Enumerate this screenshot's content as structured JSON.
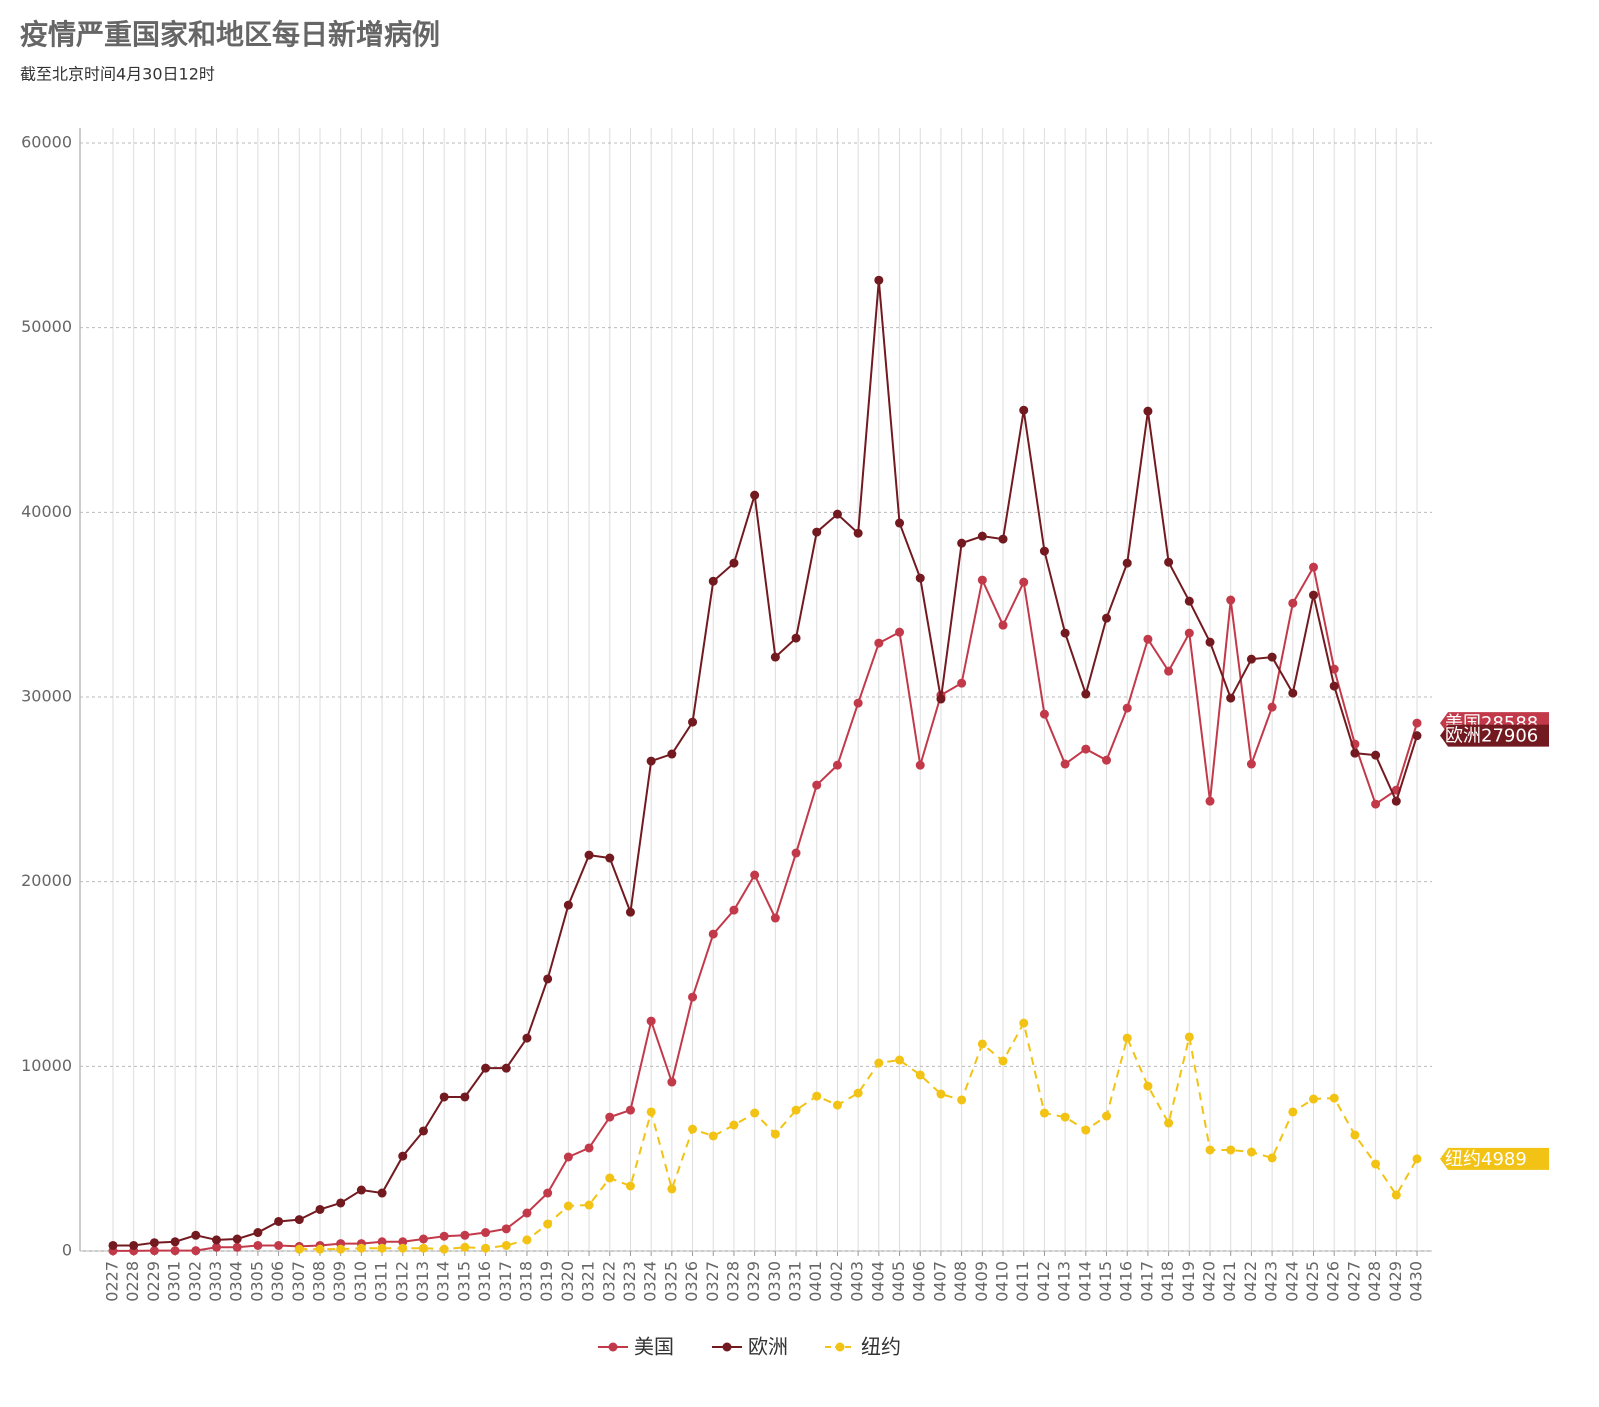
{
  "chart_data": {
    "type": "line",
    "title": "疫情严重国家和地区每日新增病例",
    "subtitle": "截至北京时间4月30日12时",
    "categories": [
      "0227",
      "0228",
      "0229",
      "0301",
      "0302",
      "0303",
      "0304",
      "0305",
      "0306",
      "0307",
      "0308",
      "0309",
      "0310",
      "0311",
      "0312",
      "0313",
      "0314",
      "0315",
      "0316",
      "0317",
      "0318",
      "0319",
      "0320",
      "0321",
      "0322",
      "0323",
      "0324",
      "0325",
      "0326",
      "0327",
      "0328",
      "0329",
      "0330",
      "0331",
      "0401",
      "0402",
      "0403",
      "0404",
      "0405",
      "0406",
      "0407",
      "0408",
      "0409",
      "0410",
      "0411",
      "0412",
      "0413",
      "0414",
      "0415",
      "0416",
      "0417",
      "0418",
      "0419",
      "0420",
      "0421",
      "0422",
      "0423",
      "0424",
      "0425",
      "0426",
      "0427",
      "0428",
      "0429",
      "0430"
    ],
    "series": [
      {
        "name": "美国",
        "color": "#c23a4a",
        "dashed": false,
        "values": [
          10,
          10,
          20,
          20,
          20,
          200,
          200,
          300,
          300,
          250,
          300,
          400,
          400,
          500,
          500,
          650,
          800,
          850,
          1000,
          1200,
          2057,
          3140,
          5090,
          5580,
          7250,
          7630,
          12450,
          9150,
          13750,
          17160,
          18460,
          20360,
          18030,
          21550,
          25230,
          26310,
          29670,
          32920,
          33510,
          26310,
          30100,
          30750,
          36330,
          33890,
          36220,
          29070,
          26370,
          27180,
          26580,
          29400,
          33130,
          31400,
          33460,
          24360,
          35250,
          26370,
          29450,
          35080,
          37030,
          31510,
          27450,
          24200,
          24960,
          28588
        ]
      },
      {
        "name": "欧洲",
        "color": "#731a20",
        "dashed": false,
        "values": [
          300,
          300,
          450,
          500,
          850,
          600,
          650,
          1000,
          1600,
          1700,
          2250,
          2600,
          3300,
          3140,
          5140,
          6500,
          8340,
          8340,
          9900,
          9900,
          11530,
          14730,
          18730,
          21440,
          21280,
          18350,
          26530,
          26910,
          28640,
          36270,
          37250,
          40930,
          32160,
          33190,
          38930,
          39900,
          38870,
          52570,
          39420,
          36440,
          29890,
          38330,
          38710,
          38550,
          45530,
          37900,
          33460,
          30160,
          34270,
          37250,
          45480,
          37300,
          35190,
          32970,
          29940,
          32050,
          32160,
          30210,
          35520,
          30590,
          26960,
          26850,
          24360,
          27906
        ]
      },
      {
        "name": "纽约",
        "color": "#f2c314",
        "dashed": true,
        "values": [
          null,
          null,
          null,
          null,
          null,
          null,
          null,
          null,
          null,
          100,
          100,
          100,
          150,
          150,
          150,
          150,
          100,
          200,
          150,
          300,
          600,
          1460,
          2440,
          2490,
          3950,
          3520,
          7530,
          3360,
          6600,
          6230,
          6820,
          7470,
          6330,
          7630,
          8390,
          7900,
          8550,
          10180,
          10340,
          9530,
          8500,
          8180,
          11210,
          10290,
          12340,
          7470,
          7250,
          6550,
          7310,
          11530,
          8930,
          6930,
          11590,
          5470,
          5470,
          5360,
          5040,
          7530,
          8230,
          8280,
          6280,
          4710,
          3030,
          4989
        ]
      }
    ],
    "ylim": [
      0,
      60000
    ],
    "yticks": [
      0,
      10000,
      20000,
      30000,
      40000,
      50000,
      60000
    ],
    "grid": true
  }
}
